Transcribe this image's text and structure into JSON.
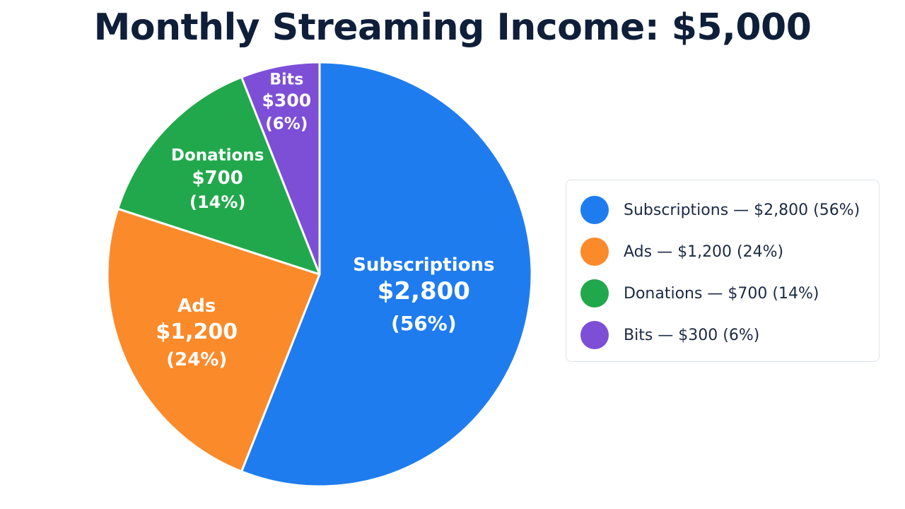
{
  "title": "Monthly Streaming Income: $5,000",
  "chart_data": {
    "type": "pie",
    "title": "Monthly Streaming Income: $5,000",
    "slices": [
      {
        "name": "Subscriptions",
        "value": 2800,
        "value_label": "$2,800",
        "percent": 56,
        "percent_label": "(56%)",
        "color": "#1f7cee",
        "legend_text": "Subscriptions — $2,800 (56%)"
      },
      {
        "name": "Ads",
        "value": 1200,
        "value_label": "$1,200",
        "percent": 24,
        "percent_label": "(24%)",
        "color": "#fb8a2b",
        "legend_text": "Ads — $1,200 (24%)"
      },
      {
        "name": "Donations",
        "value": 700,
        "value_label": "$700",
        "percent": 14,
        "percent_label": "(14%)",
        "color": "#22a84c",
        "legend_text": "Donations — $700 (14%)"
      },
      {
        "name": "Bits",
        "value": 300,
        "value_label": "$300",
        "percent": 6,
        "percent_label": "(6%)",
        "color": "#7d4fd6",
        "legend_text": "Bits — $300 (6%)"
      }
    ],
    "legend_position": "right",
    "start_angle": "12 o'clock",
    "direction": "clockwise"
  }
}
